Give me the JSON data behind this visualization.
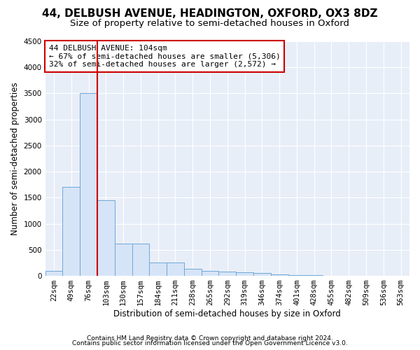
{
  "title_line1": "44, DELBUSH AVENUE, HEADINGTON, OXFORD, OX3 8DZ",
  "title_line2": "Size of property relative to semi-detached houses in Oxford",
  "xlabel": "Distribution of semi-detached houses by size in Oxford",
  "ylabel": "Number of semi-detached properties",
  "categories": [
    "22sqm",
    "49sqm",
    "76sqm",
    "103sqm",
    "130sqm",
    "157sqm",
    "184sqm",
    "211sqm",
    "238sqm",
    "265sqm",
    "292sqm",
    "319sqm",
    "346sqm",
    "374sqm",
    "401sqm",
    "428sqm",
    "455sqm",
    "482sqm",
    "509sqm",
    "536sqm",
    "563sqm"
  ],
  "values": [
    100,
    1700,
    3500,
    1450,
    620,
    620,
    250,
    250,
    140,
    100,
    80,
    70,
    60,
    30,
    20,
    10,
    5,
    5,
    3,
    2,
    2
  ],
  "bar_color": "#d6e4f7",
  "bar_edge_color": "#6fa8d6",
  "highlight_line_bin": 2,
  "highlight_color": "#cc0000",
  "annotation_title": "44 DELBUSH AVENUE: 104sqm",
  "annotation_line1": "← 67% of semi-detached houses are smaller (5,306)",
  "annotation_line2": "32% of semi-detached houses are larger (2,572) →",
  "annotation_box_color": "#ffffff",
  "annotation_box_edge": "#cc0000",
  "ylim": [
    0,
    4500
  ],
  "yticks": [
    0,
    500,
    1000,
    1500,
    2000,
    2500,
    3000,
    3500,
    4000,
    4500
  ],
  "footer_line1": "Contains HM Land Registry data © Crown copyright and database right 2024.",
  "footer_line2": "Contains public sector information licensed under the Open Government Licence v3.0.",
  "background_color": "#ffffff",
  "plot_bg_color": "#e8eef8",
  "grid_color": "#ffffff",
  "title_fontsize": 11,
  "subtitle_fontsize": 9.5,
  "axis_label_fontsize": 8.5,
  "tick_fontsize": 7.5,
  "annotation_fontsize": 8,
  "footer_fontsize": 6.5
}
